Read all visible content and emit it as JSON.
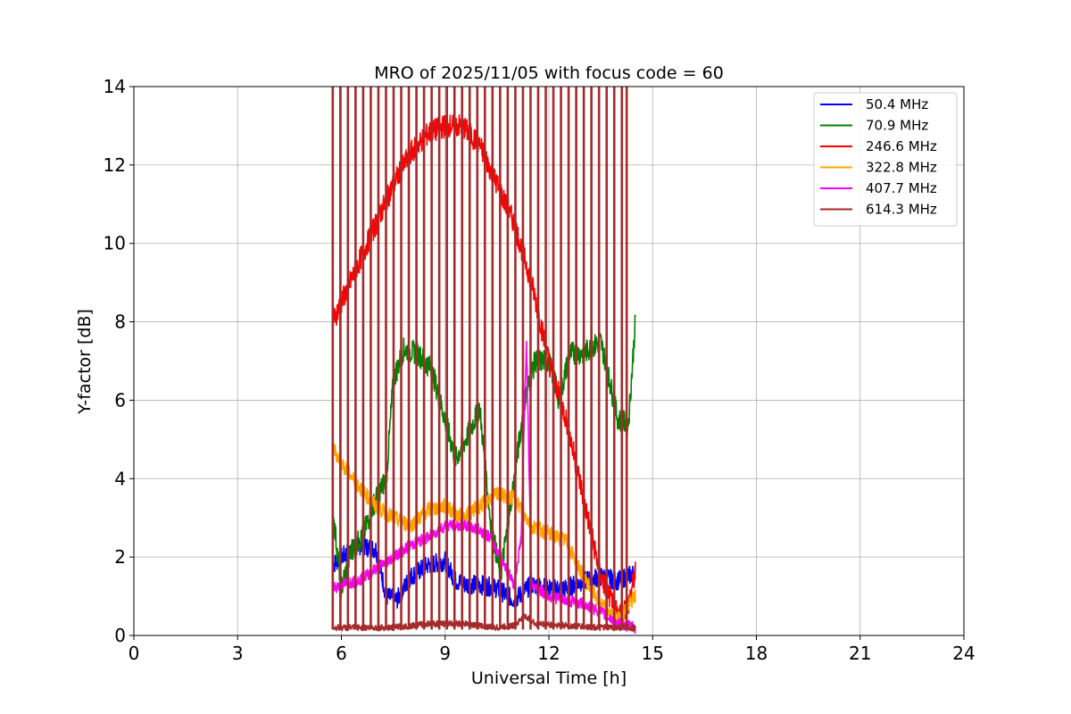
{
  "chart_data": {
    "type": "line",
    "title": "MRO of 2025/11/05 with focus code = 60",
    "xlabel": "Universal Time [h]",
    "ylabel": "Y-factor [dB]",
    "xlim": [
      0,
      24
    ],
    "ylim": [
      0,
      14
    ],
    "xticks": [
      "0",
      "3",
      "6",
      "9",
      "12",
      "15",
      "18",
      "21",
      "24"
    ],
    "yticks": [
      "0",
      "2",
      "4",
      "6",
      "8",
      "10",
      "12",
      "14"
    ],
    "grid": true,
    "legend_position": "top-right",
    "series": [
      {
        "name": "50.4 MHz",
        "color": "#0000ff",
        "x": [
          5.75,
          6.0,
          6.5,
          7.0,
          7.3,
          7.6,
          8.0,
          8.5,
          9.0,
          9.3,
          9.6,
          10.0,
          10.5,
          11.0,
          11.5,
          12.0,
          12.5,
          13.0,
          13.5,
          14.0,
          14.5
        ],
        "y": [
          1.8,
          2.0,
          2.3,
          2.2,
          1.0,
          0.9,
          1.5,
          1.8,
          1.9,
          1.4,
          1.3,
          1.3,
          1.2,
          0.9,
          1.3,
          1.2,
          1.2,
          1.4,
          1.5,
          1.4,
          1.6
        ],
        "noise": 0.25
      },
      {
        "name": "70.9 MHz",
        "color": "#008000",
        "x": [
          5.75,
          6.0,
          6.3,
          6.6,
          7.0,
          7.3,
          7.5,
          7.8,
          8.2,
          8.6,
          9.0,
          9.3,
          9.6,
          10.0,
          10.3,
          10.6,
          11.0,
          11.3,
          11.6,
          12.0,
          12.3,
          12.6,
          13.0,
          13.5,
          14.0,
          14.3,
          14.5
        ],
        "y": [
          3.2,
          1.2,
          2.2,
          2.5,
          3.5,
          4.0,
          6.5,
          7.3,
          7.2,
          6.8,
          5.5,
          4.5,
          5.0,
          5.8,
          3.0,
          1.5,
          4.0,
          6.0,
          7.0,
          7.0,
          6.0,
          7.2,
          7.2,
          7.5,
          5.5,
          5.4,
          8.0
        ],
        "noise": 0.3
      },
      {
        "name": "246.6 MHz",
        "color": "#ff0000",
        "x": [
          5.75,
          6.0,
          6.5,
          7.0,
          7.5,
          8.0,
          8.5,
          9.0,
          9.5,
          10.0,
          10.5,
          11.0,
          11.5,
          12.0,
          12.5,
          13.0,
          13.5,
          14.0,
          14.3,
          14.5
        ],
        "y": [
          8.0,
          8.5,
          9.5,
          10.5,
          11.5,
          12.3,
          12.8,
          13.0,
          13.0,
          12.5,
          11.5,
          10.5,
          9.0,
          7.0,
          5.5,
          3.5,
          1.5,
          0.5,
          0.8,
          1.6
        ],
        "noise": 0.3
      },
      {
        "name": "322.8 MHz",
        "color": "#ffa500",
        "x": [
          5.75,
          6.0,
          6.5,
          7.0,
          7.5,
          8.0,
          8.5,
          9.0,
          9.5,
          10.0,
          10.5,
          11.0,
          11.5,
          12.0,
          12.5,
          13.0,
          13.5,
          14.0,
          14.5
        ],
        "y": [
          4.8,
          4.4,
          3.8,
          3.3,
          3.0,
          2.8,
          3.2,
          3.3,
          3.0,
          3.3,
          3.6,
          3.5,
          2.8,
          2.6,
          2.4,
          1.5,
          0.8,
          0.4,
          1.0
        ],
        "noise": 0.2
      },
      {
        "name": "407.7 MHz",
        "color": "#ff00ff",
        "x": [
          5.75,
          6.0,
          6.5,
          7.0,
          7.5,
          8.0,
          8.5,
          9.0,
          9.5,
          10.0,
          10.3,
          10.6,
          11.0,
          11.2,
          11.35,
          11.5,
          12.0,
          12.5,
          13.0,
          13.5,
          14.0,
          14.5
        ],
        "y": [
          1.2,
          1.3,
          1.4,
          1.7,
          2.0,
          2.3,
          2.5,
          2.8,
          2.8,
          2.7,
          2.5,
          2.0,
          1.3,
          2.5,
          7.5,
          1.3,
          1.0,
          0.9,
          0.8,
          0.6,
          0.3,
          0.2
        ],
        "noise": 0.15
      },
      {
        "name": "614.3 MHz",
        "color": "#a52a2a",
        "x": [
          5.75,
          6.5,
          7.5,
          8.5,
          9.5,
          10.5,
          11.0,
          11.3,
          11.6,
          12.5,
          13.5,
          14.5
        ],
        "y": [
          0.2,
          0.2,
          0.2,
          0.3,
          0.3,
          0.2,
          0.25,
          0.5,
          0.3,
          0.25,
          0.2,
          0.2
        ],
        "noise": 0.08,
        "spikes": [
          5.75,
          5.97,
          6.19,
          6.41,
          6.63,
          6.85,
          7.07,
          7.29,
          7.51,
          7.73,
          7.95,
          8.17,
          8.39,
          8.61,
          8.83,
          9.05,
          9.27,
          9.49,
          9.71,
          9.93,
          10.15,
          10.37,
          10.59,
          10.81,
          11.03,
          11.25,
          11.47,
          11.69,
          11.91,
          12.13,
          12.35,
          12.57,
          12.79,
          13.01,
          13.23,
          13.45,
          13.67,
          13.89,
          14.11,
          14.25
        ]
      }
    ]
  }
}
